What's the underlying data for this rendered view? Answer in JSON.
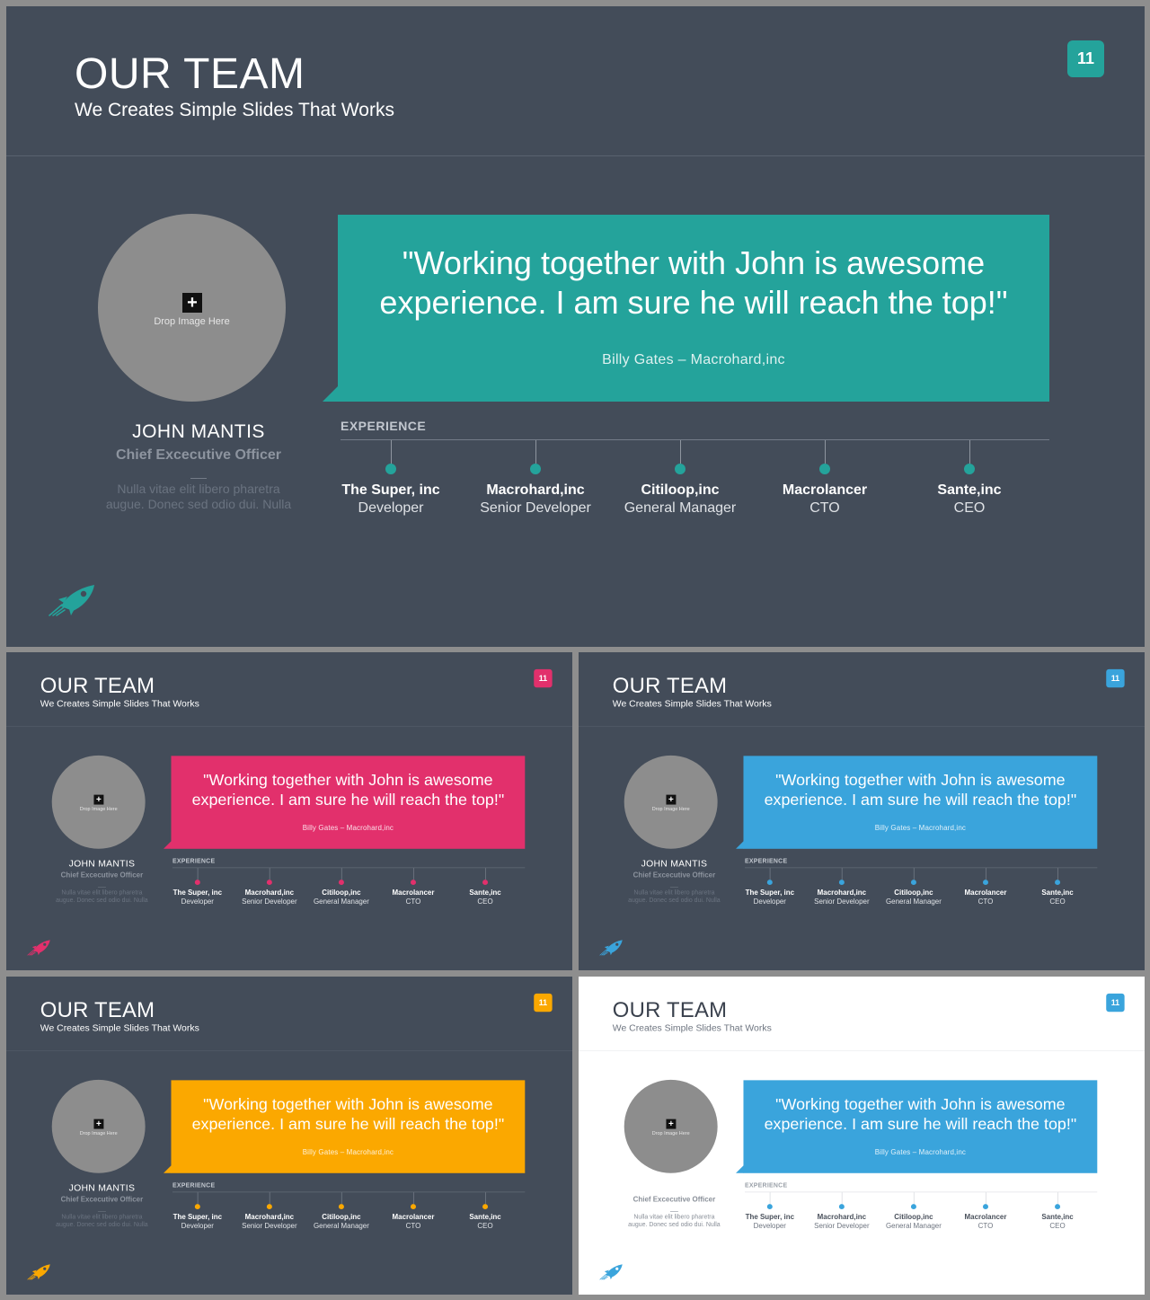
{
  "slide": {
    "title": "OUR TEAM",
    "subtitle": "We Creates Simple Slides That Works",
    "page_number": "11",
    "photo_placeholder": {
      "plus": "+",
      "label": "Drop Image Here"
    },
    "person": {
      "name": "JOHN MANTIS",
      "role": "Chief Excecutive Officer",
      "description_line1": "Nulla vitae elit libero pharetra",
      "description_line2": "augue. Donec sed odio dui. Nulla"
    },
    "quote": {
      "line1": "\"Working together with John is awesome",
      "line2": "experience. I am sure he will reach the top!\"",
      "author": "Billy Gates  –  Macrohard,inc"
    },
    "experience": {
      "label": "EXPERIENCE",
      "items": [
        {
          "company": "The Super, inc",
          "position": "Developer"
        },
        {
          "company": "Macrohard,inc",
          "position": "Senior Developer"
        },
        {
          "company": "Citiloop,inc",
          "position": "General Manager"
        },
        {
          "company": "Macrolancer",
          "position": "CTO"
        },
        {
          "company": "Sante,inc",
          "position": "CEO"
        }
      ]
    },
    "rocket_icon": "rocket-icon"
  },
  "variants": [
    {
      "theme": "dark",
      "accent": "#24a39b"
    },
    {
      "theme": "dark",
      "accent": "#e2306c"
    },
    {
      "theme": "dark",
      "accent": "#3aa4dc"
    },
    {
      "theme": "dark",
      "accent": "#fba800"
    },
    {
      "theme": "light",
      "accent": "#3aa4dc"
    }
  ]
}
